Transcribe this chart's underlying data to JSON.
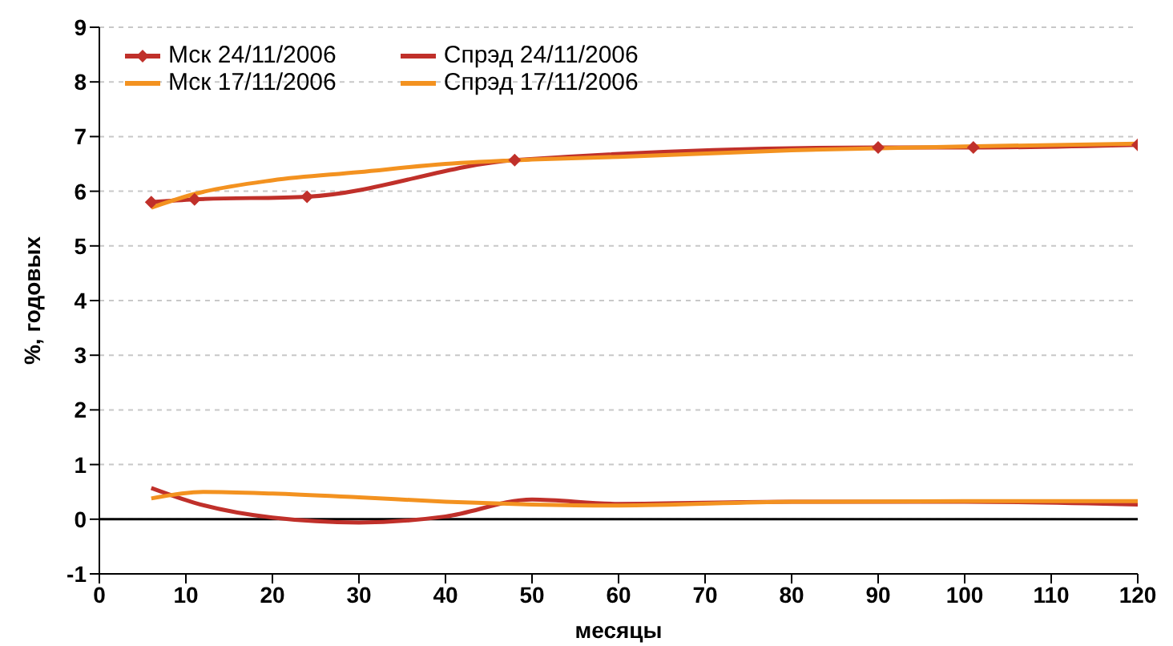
{
  "chart_data": {
    "type": "line",
    "xlabel": "месяцы",
    "ylabel": "%, годовых",
    "xlim": [
      0,
      120
    ],
    "xticks": [
      0,
      10,
      20,
      30,
      40,
      50,
      60,
      70,
      80,
      90,
      100,
      110,
      120
    ],
    "ylim": [
      -1,
      9
    ],
    "yticks": [
      -1,
      0,
      1,
      2,
      3,
      4,
      5,
      6,
      7,
      8,
      9
    ],
    "grid": "y",
    "legend": "top left",
    "ref_lines": [
      {
        "axis": "y",
        "value": 0,
        "color": "#000000"
      }
    ],
    "series": [
      {
        "name": "Мск 24/11/2006",
        "color": "#c0302a",
        "marker": "diamond",
        "x": [
          6,
          11,
          24,
          48,
          90,
          101,
          120
        ],
        "values": [
          5.8,
          5.85,
          5.9,
          6.57,
          6.8,
          6.8,
          6.85
        ]
      },
      {
        "name": "Спрэд 24/11/2006",
        "color": "#c0302a",
        "marker": "none",
        "x": [
          6,
          11,
          20,
          30,
          40,
          50,
          60,
          80,
          100,
          120
        ],
        "values": [
          0.57,
          0.3,
          0.03,
          -0.06,
          0.05,
          0.36,
          0.28,
          0.32,
          0.32,
          0.27
        ]
      },
      {
        "name": "Мск 17/11/2006",
        "color": "#f39220",
        "marker": "none",
        "x": [
          6,
          11,
          20,
          30,
          40,
          50,
          60,
          80,
          100,
          120
        ],
        "values": [
          5.7,
          5.95,
          6.2,
          6.35,
          6.5,
          6.58,
          6.63,
          6.75,
          6.82,
          6.87
        ]
      },
      {
        "name": "Спрэд 17/11/2006",
        "color": "#f39220",
        "marker": "none",
        "x": [
          6,
          12,
          20,
          30,
          40,
          50,
          60,
          80,
          100,
          120
        ],
        "values": [
          0.38,
          0.5,
          0.47,
          0.4,
          0.32,
          0.27,
          0.25,
          0.32,
          0.33,
          0.33
        ]
      }
    ]
  }
}
